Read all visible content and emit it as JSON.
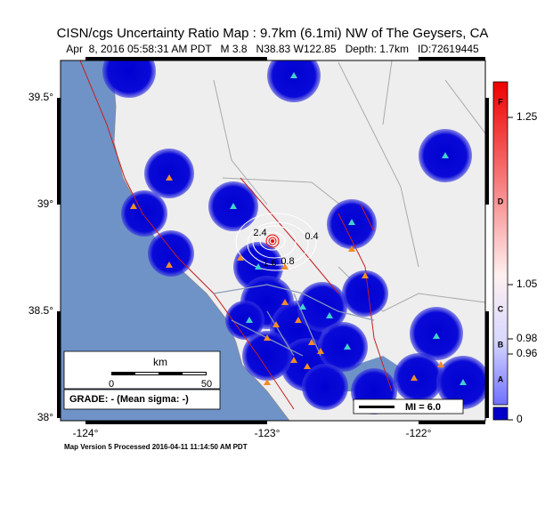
{
  "header": {
    "title": "CISN/cgs Uncertainty Ratio Map : 9.7km (6.1mi) NW of The Geysers, CA",
    "subtitle": "Apr  8, 2016 05:58:31 AM PDT   M 3.8   N38.83 W122.85   Depth: 1.7km   ID:72619445"
  },
  "axes": {
    "lat_labels": [
      "39.5°",
      "39°",
      "38.5°",
      "38°"
    ],
    "lon_labels": [
      "-124°",
      "-123°",
      "-122°"
    ]
  },
  "colorbar": {
    "values": [
      "1.25",
      "1.05",
      "0.98",
      "0.96",
      "0"
    ],
    "grades": [
      "F",
      "D",
      "C",
      "B",
      "A"
    ]
  },
  "contours": [
    "2.4",
    "0.4",
    "1.6",
    "0.8"
  ],
  "scale_bar": {
    "unit": "km",
    "labels": [
      "0",
      "50"
    ]
  },
  "grade_box": "GRADE: - (Mean sigma: -)",
  "mi_legend": "MI = 6.0",
  "footer": "Map Version 5 Processed 2016-04-11 11:14:50 AM PDT"
}
